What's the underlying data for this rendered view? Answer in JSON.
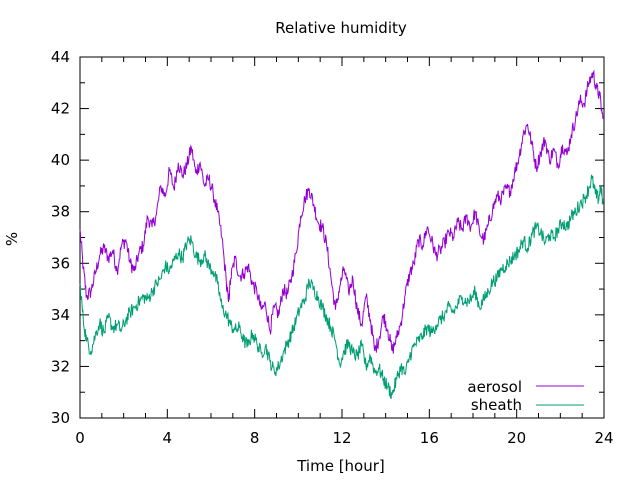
{
  "chart_data": {
    "type": "line",
    "title": "Relative humidity",
    "xlabel": "Time [hour]",
    "ylabel": "%",
    "xlim": [
      0,
      24
    ],
    "ylim": [
      30,
      44
    ],
    "xticks": [
      0,
      4,
      8,
      12,
      16,
      20,
      24
    ],
    "yticks": [
      30,
      32,
      34,
      36,
      38,
      40,
      42,
      44
    ],
    "xtick_labels": [
      "0",
      "4",
      "8",
      "12",
      "16",
      "20",
      "24"
    ],
    "ytick_labels": [
      "30",
      "32",
      "34",
      "36",
      "38",
      "40",
      "42",
      "44"
    ],
    "grid": false,
    "legend_position": "bottom-right",
    "series": [
      {
        "name": "aerosol",
        "color": "#9400d3",
        "points": [
          [
            0.0,
            37.3
          ],
          [
            0.15,
            35.8
          ],
          [
            0.3,
            34.7
          ],
          [
            0.5,
            34.9
          ],
          [
            0.7,
            35.6
          ],
          [
            0.9,
            36.3
          ],
          [
            1.1,
            36.6
          ],
          [
            1.3,
            36.2
          ],
          [
            1.5,
            36.5
          ],
          [
            1.7,
            35.7
          ],
          [
            1.9,
            36.7
          ],
          [
            2.1,
            36.9
          ],
          [
            2.3,
            36.0
          ],
          [
            2.5,
            35.7
          ],
          [
            2.7,
            36.4
          ],
          [
            2.9,
            36.7
          ],
          [
            3.1,
            37.8
          ],
          [
            3.3,
            37.4
          ],
          [
            3.5,
            37.9
          ],
          [
            3.7,
            39.0
          ],
          [
            3.9,
            38.6
          ],
          [
            4.1,
            39.6
          ],
          [
            4.3,
            38.9
          ],
          [
            4.5,
            39.9
          ],
          [
            4.7,
            39.4
          ],
          [
            4.9,
            39.8
          ],
          [
            5.1,
            40.5
          ],
          [
            5.3,
            39.5
          ],
          [
            5.5,
            39.9
          ],
          [
            5.7,
            39.0
          ],
          [
            5.9,
            39.3
          ],
          [
            6.1,
            38.7
          ],
          [
            6.3,
            38.0
          ],
          [
            6.5,
            37.0
          ],
          [
            6.7,
            35.3
          ],
          [
            6.8,
            34.5
          ],
          [
            6.9,
            35.4
          ],
          [
            7.1,
            36.2
          ],
          [
            7.3,
            35.5
          ],
          [
            7.5,
            35.6
          ],
          [
            7.7,
            35.9
          ],
          [
            7.9,
            35.2
          ],
          [
            8.1,
            34.9
          ],
          [
            8.3,
            34.2
          ],
          [
            8.5,
            34.4
          ],
          [
            8.7,
            33.4
          ],
          [
            8.9,
            34.3
          ],
          [
            9.1,
            34.0
          ],
          [
            9.3,
            35.0
          ],
          [
            9.5,
            34.8
          ],
          [
            9.7,
            35.5
          ],
          [
            9.9,
            36.4
          ],
          [
            10.1,
            37.8
          ],
          [
            10.3,
            38.5
          ],
          [
            10.5,
            38.9
          ],
          [
            10.7,
            38.3
          ],
          [
            10.9,
            37.6
          ],
          [
            11.1,
            37.4
          ],
          [
            11.3,
            36.7
          ],
          [
            11.5,
            35.4
          ],
          [
            11.7,
            34.2
          ],
          [
            11.9,
            35.1
          ],
          [
            12.1,
            35.8
          ],
          [
            12.3,
            34.9
          ],
          [
            12.5,
            35.4
          ],
          [
            12.7,
            34.2
          ],
          [
            12.9,
            33.6
          ],
          [
            13.1,
            34.7
          ],
          [
            13.3,
            33.8
          ],
          [
            13.5,
            32.6
          ],
          [
            13.7,
            33.1
          ],
          [
            13.9,
            34.0
          ],
          [
            14.1,
            33.4
          ],
          [
            14.3,
            32.6
          ],
          [
            14.5,
            33.1
          ],
          [
            14.7,
            33.7
          ],
          [
            14.9,
            34.8
          ],
          [
            15.1,
            35.6
          ],
          [
            15.3,
            36.0
          ],
          [
            15.5,
            36.9
          ],
          [
            15.7,
            36.7
          ],
          [
            15.9,
            37.4
          ],
          [
            16.1,
            36.9
          ],
          [
            16.3,
            36.3
          ],
          [
            16.5,
            36.5
          ],
          [
            16.7,
            36.8
          ],
          [
            16.9,
            37.2
          ],
          [
            17.1,
            37.0
          ],
          [
            17.3,
            37.6
          ],
          [
            17.5,
            37.3
          ],
          [
            17.7,
            37.8
          ],
          [
            17.9,
            37.4
          ],
          [
            18.1,
            38.0
          ],
          [
            18.3,
            37.2
          ],
          [
            18.5,
            36.9
          ],
          [
            18.7,
            37.5
          ],
          [
            18.9,
            38.1
          ],
          [
            19.1,
            38.6
          ],
          [
            19.3,
            38.5
          ],
          [
            19.5,
            38.9
          ],
          [
            19.7,
            38.8
          ],
          [
            19.9,
            39.5
          ],
          [
            20.1,
            40.1
          ],
          [
            20.3,
            41.0
          ],
          [
            20.5,
            41.4
          ],
          [
            20.7,
            40.6
          ],
          [
            20.9,
            39.7
          ],
          [
            21.1,
            40.3
          ],
          [
            21.3,
            40.8
          ],
          [
            21.5,
            40.0
          ],
          [
            21.7,
            40.4
          ],
          [
            21.9,
            39.8
          ],
          [
            22.1,
            40.6
          ],
          [
            22.3,
            40.2
          ],
          [
            22.5,
            41.0
          ],
          [
            22.7,
            41.6
          ],
          [
            22.9,
            42.3
          ],
          [
            23.1,
            42.2
          ],
          [
            23.3,
            43.0
          ],
          [
            23.5,
            43.4
          ],
          [
            23.65,
            42.8
          ],
          [
            23.8,
            42.5
          ],
          [
            23.95,
            41.6
          ]
        ]
      },
      {
        "name": "sheath",
        "color": "#009e73",
        "points": [
          [
            0.0,
            35.2
          ],
          [
            0.15,
            33.8
          ],
          [
            0.3,
            33.0
          ],
          [
            0.5,
            32.6
          ],
          [
            0.7,
            33.2
          ],
          [
            0.9,
            33.7
          ],
          [
            1.1,
            33.3
          ],
          [
            1.3,
            33.9
          ],
          [
            1.5,
            33.5
          ],
          [
            1.7,
            33.6
          ],
          [
            1.9,
            33.4
          ],
          [
            2.1,
            33.8
          ],
          [
            2.3,
            34.1
          ],
          [
            2.5,
            34.3
          ],
          [
            2.7,
            34.5
          ],
          [
            2.9,
            34.7
          ],
          [
            3.1,
            34.6
          ],
          [
            3.3,
            34.9
          ],
          [
            3.5,
            35.2
          ],
          [
            3.7,
            35.4
          ],
          [
            3.9,
            35.9
          ],
          [
            4.1,
            35.7
          ],
          [
            4.3,
            36.1
          ],
          [
            4.5,
            36.4
          ],
          [
            4.7,
            36.2
          ],
          [
            4.9,
            36.8
          ],
          [
            5.1,
            36.9
          ],
          [
            5.3,
            36.3
          ],
          [
            5.5,
            36.1
          ],
          [
            5.7,
            36.3
          ],
          [
            5.9,
            35.9
          ],
          [
            6.1,
            35.7
          ],
          [
            6.3,
            35.2
          ],
          [
            6.5,
            34.3
          ],
          [
            6.7,
            34.0
          ],
          [
            6.9,
            33.6
          ],
          [
            7.1,
            33.4
          ],
          [
            7.3,
            33.5
          ],
          [
            7.5,
            33.0
          ],
          [
            7.7,
            32.8
          ],
          [
            7.9,
            33.3
          ],
          [
            8.1,
            32.9
          ],
          [
            8.3,
            32.5
          ],
          [
            8.5,
            32.8
          ],
          [
            8.7,
            32.2
          ],
          [
            8.9,
            31.8
          ],
          [
            9.1,
            32.0
          ],
          [
            9.3,
            32.5
          ],
          [
            9.5,
            32.9
          ],
          [
            9.7,
            33.3
          ],
          [
            9.9,
            33.8
          ],
          [
            10.1,
            34.3
          ],
          [
            10.3,
            34.6
          ],
          [
            10.5,
            35.3
          ],
          [
            10.7,
            35.0
          ],
          [
            10.9,
            34.7
          ],
          [
            11.1,
            34.3
          ],
          [
            11.3,
            33.9
          ],
          [
            11.5,
            33.5
          ],
          [
            11.7,
            33.0
          ],
          [
            11.9,
            32.1
          ],
          [
            12.1,
            32.6
          ],
          [
            12.3,
            32.9
          ],
          [
            12.5,
            32.5
          ],
          [
            12.7,
            32.4
          ],
          [
            12.9,
            32.8
          ],
          [
            13.1,
            32.0
          ],
          [
            13.3,
            32.4
          ],
          [
            13.5,
            31.8
          ],
          [
            13.7,
            31.9
          ],
          [
            13.9,
            31.5
          ],
          [
            14.1,
            31.2
          ],
          [
            14.3,
            30.9
          ],
          [
            14.5,
            31.5
          ],
          [
            14.7,
            32.0
          ],
          [
            14.9,
            31.7
          ],
          [
            15.1,
            32.4
          ],
          [
            15.3,
            32.8
          ],
          [
            15.5,
            33.0
          ],
          [
            15.7,
            33.2
          ],
          [
            15.9,
            33.5
          ],
          [
            16.1,
            33.3
          ],
          [
            16.3,
            33.6
          ],
          [
            16.5,
            33.8
          ],
          [
            16.7,
            34.0
          ],
          [
            16.9,
            34.3
          ],
          [
            17.1,
            34.1
          ],
          [
            17.3,
            34.4
          ],
          [
            17.5,
            34.7
          ],
          [
            17.7,
            34.5
          ],
          [
            17.9,
            34.6
          ],
          [
            18.1,
            34.9
          ],
          [
            18.3,
            34.3
          ],
          [
            18.5,
            34.6
          ],
          [
            18.7,
            34.9
          ],
          [
            18.9,
            35.3
          ],
          [
            19.1,
            35.4
          ],
          [
            19.3,
            35.8
          ],
          [
            19.5,
            35.9
          ],
          [
            19.7,
            36.1
          ],
          [
            19.9,
            36.3
          ],
          [
            20.1,
            36.5
          ],
          [
            20.3,
            36.9
          ],
          [
            20.5,
            36.6
          ],
          [
            20.7,
            37.1
          ],
          [
            20.9,
            37.4
          ],
          [
            21.1,
            37.2
          ],
          [
            21.3,
            36.8
          ],
          [
            21.5,
            37.1
          ],
          [
            21.7,
            37.0
          ],
          [
            21.9,
            37.3
          ],
          [
            22.1,
            37.6
          ],
          [
            22.3,
            37.4
          ],
          [
            22.5,
            37.8
          ],
          [
            22.7,
            38.0
          ],
          [
            22.9,
            38.3
          ],
          [
            23.1,
            38.5
          ],
          [
            23.3,
            38.9
          ],
          [
            23.45,
            39.3
          ],
          [
            23.6,
            38.7
          ],
          [
            23.75,
            38.5
          ],
          [
            23.85,
            39.0
          ],
          [
            23.95,
            38.3
          ]
        ]
      }
    ]
  }
}
